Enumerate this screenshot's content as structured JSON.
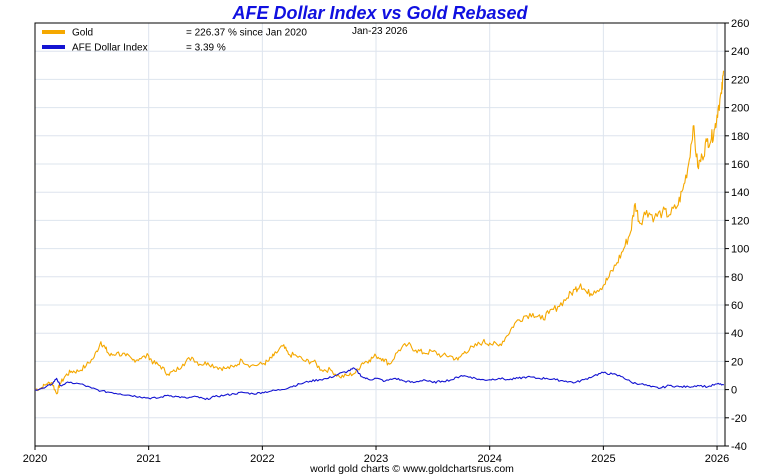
{
  "chart_data": {
    "type": "line",
    "title": "AFE Dollar Index vs Gold Rebased",
    "date_label": "Jan-23  2026",
    "source": "world gold charts © www.goldchartsrus.com",
    "xlabel": "",
    "ylabel": "",
    "xlim": [
      2020.0,
      2026.07
    ],
    "ylim": [
      -40,
      260
    ],
    "x_ticks": [
      {
        "value": 2020,
        "label": "2020"
      },
      {
        "value": 2021,
        "label": "2021"
      },
      {
        "value": 2022,
        "label": "2022"
      },
      {
        "value": 2023,
        "label": "2023"
      },
      {
        "value": 2024,
        "label": "2024"
      },
      {
        "value": 2025,
        "label": "2025"
      },
      {
        "value": 2026,
        "label": "2026"
      }
    ],
    "y_ticks": [
      {
        "value": 260,
        "label": "260"
      },
      {
        "value": 240,
        "label": "240"
      },
      {
        "value": 220,
        "label": "220"
      },
      {
        "value": 200,
        "label": "200"
      },
      {
        "value": 180,
        "label": "180"
      },
      {
        "value": 160,
        "label": "160"
      },
      {
        "value": 140,
        "label": "140"
      },
      {
        "value": 120,
        "label": "120"
      },
      {
        "value": 100,
        "label": "100"
      },
      {
        "value": 80,
        "label": "80"
      },
      {
        "value": 60,
        "label": "60"
      },
      {
        "value": 40,
        "label": "40"
      },
      {
        "value": 20,
        "label": "20"
      },
      {
        "value": 0,
        "label": "0"
      },
      {
        "value": -20,
        "label": "-20"
      },
      {
        "value": -40,
        "label": "-40"
      }
    ],
    "legend": {
      "placement": "top-left",
      "entries": [
        {
          "name": "Gold",
          "value_text": "= 226.37 % since Jan 2020",
          "color": "#f5a800"
        },
        {
          "name": "AFE Dollar Index",
          "value_text": "= 3.39 %",
          "color": "#1414d2"
        }
      ]
    },
    "series": [
      {
        "name": "Gold",
        "color": "#f5a800",
        "points": [
          [
            2020.0,
            0
          ],
          [
            2020.05,
            1
          ],
          [
            2020.1,
            4
          ],
          [
            2020.15,
            5
          ],
          [
            2020.19,
            -3
          ],
          [
            2020.22,
            4
          ],
          [
            2020.27,
            10
          ],
          [
            2020.32,
            13
          ],
          [
            2020.38,
            13
          ],
          [
            2020.45,
            17
          ],
          [
            2020.52,
            23
          ],
          [
            2020.58,
            34
          ],
          [
            2020.62,
            29
          ],
          [
            2020.66,
            24
          ],
          [
            2020.72,
            26
          ],
          [
            2020.8,
            24
          ],
          [
            2020.86,
            21
          ],
          [
            2020.92,
            22
          ],
          [
            2021.0,
            24
          ],
          [
            2021.04,
            19
          ],
          [
            2021.1,
            17
          ],
          [
            2021.17,
            11
          ],
          [
            2021.23,
            13
          ],
          [
            2021.3,
            18
          ],
          [
            2021.38,
            23
          ],
          [
            2021.45,
            18
          ],
          [
            2021.52,
            19
          ],
          [
            2021.6,
            16
          ],
          [
            2021.67,
            15
          ],
          [
            2021.75,
            16
          ],
          [
            2021.82,
            21
          ],
          [
            2021.9,
            17
          ],
          [
            2022.0,
            18
          ],
          [
            2022.05,
            20
          ],
          [
            2022.1,
            24
          ],
          [
            2022.18,
            31
          ],
          [
            2022.23,
            25
          ],
          [
            2022.3,
            24
          ],
          [
            2022.38,
            20
          ],
          [
            2022.45,
            20
          ],
          [
            2022.52,
            14
          ],
          [
            2022.6,
            14
          ],
          [
            2022.68,
            9
          ],
          [
            2022.75,
            10
          ],
          [
            2022.82,
            12
          ],
          [
            2022.88,
            19
          ],
          [
            2022.94,
            21
          ],
          [
            2023.0,
            24
          ],
          [
            2023.06,
            22
          ],
          [
            2023.12,
            18
          ],
          [
            2023.2,
            28
          ],
          [
            2023.28,
            32
          ],
          [
            2023.35,
            28
          ],
          [
            2023.42,
            26
          ],
          [
            2023.5,
            27
          ],
          [
            2023.58,
            24
          ],
          [
            2023.65,
            24
          ],
          [
            2023.72,
            21
          ],
          [
            2023.78,
            27
          ],
          [
            2023.86,
            30
          ],
          [
            2023.94,
            34
          ],
          [
            2024.0,
            33
          ],
          [
            2024.08,
            31
          ],
          [
            2024.15,
            38
          ],
          [
            2024.22,
            47
          ],
          [
            2024.3,
            52
          ],
          [
            2024.38,
            54
          ],
          [
            2024.45,
            50
          ],
          [
            2024.52,
            54
          ],
          [
            2024.6,
            59
          ],
          [
            2024.68,
            65
          ],
          [
            2024.75,
            71
          ],
          [
            2024.8,
            75
          ],
          [
            2024.86,
            68
          ],
          [
            2024.92,
            70
          ],
          [
            2025.0,
            74
          ],
          [
            2025.05,
            80
          ],
          [
            2025.12,
            90
          ],
          [
            2025.18,
            100
          ],
          [
            2025.24,
            112
          ],
          [
            2025.28,
            132
          ],
          [
            2025.32,
            118
          ],
          [
            2025.38,
            127
          ],
          [
            2025.45,
            122
          ],
          [
            2025.52,
            126
          ],
          [
            2025.58,
            124
          ],
          [
            2025.65,
            130
          ],
          [
            2025.7,
            142
          ],
          [
            2025.75,
            160
          ],
          [
            2025.79,
            187
          ],
          [
            2025.83,
            158
          ],
          [
            2025.87,
            165
          ],
          [
            2025.91,
            176
          ],
          [
            2025.95,
            178
          ],
          [
            2025.98,
            185
          ],
          [
            2026.01,
            200
          ],
          [
            2026.04,
            210
          ],
          [
            2026.06,
            226
          ]
        ]
      },
      {
        "name": "AFE Dollar Index",
        "color": "#1414d2",
        "points": [
          [
            2020.0,
            0
          ],
          [
            2020.08,
            1
          ],
          [
            2020.15,
            4
          ],
          [
            2020.19,
            8
          ],
          [
            2020.22,
            3
          ],
          [
            2020.3,
            5
          ],
          [
            2020.4,
            4
          ],
          [
            2020.5,
            1
          ],
          [
            2020.58,
            -1
          ],
          [
            2020.67,
            -2
          ],
          [
            2020.75,
            -3
          ],
          [
            2020.83,
            -4
          ],
          [
            2020.92,
            -5
          ],
          [
            2021.0,
            -6
          ],
          [
            2021.08,
            -6
          ],
          [
            2021.17,
            -4
          ],
          [
            2021.25,
            -5
          ],
          [
            2021.33,
            -6
          ],
          [
            2021.42,
            -5
          ],
          [
            2021.5,
            -7
          ],
          [
            2021.58,
            -5
          ],
          [
            2021.67,
            -4
          ],
          [
            2021.75,
            -3
          ],
          [
            2021.83,
            -2
          ],
          [
            2021.92,
            -3
          ],
          [
            2022.0,
            -2
          ],
          [
            2022.08,
            -1
          ],
          [
            2022.17,
            0
          ],
          [
            2022.25,
            2
          ],
          [
            2022.33,
            4
          ],
          [
            2022.42,
            6
          ],
          [
            2022.5,
            7
          ],
          [
            2022.58,
            8
          ],
          [
            2022.67,
            11
          ],
          [
            2022.75,
            13
          ],
          [
            2022.81,
            15
          ],
          [
            2022.88,
            9
          ],
          [
            2022.94,
            7
          ],
          [
            2023.0,
            8
          ],
          [
            2023.08,
            6
          ],
          [
            2023.17,
            8
          ],
          [
            2023.25,
            6
          ],
          [
            2023.33,
            5
          ],
          [
            2023.42,
            7
          ],
          [
            2023.5,
            5
          ],
          [
            2023.58,
            6
          ],
          [
            2023.67,
            7
          ],
          [
            2023.75,
            10
          ],
          [
            2023.83,
            9
          ],
          [
            2023.92,
            7
          ],
          [
            2024.0,
            7
          ],
          [
            2024.08,
            8
          ],
          [
            2024.17,
            7
          ],
          [
            2024.25,
            8
          ],
          [
            2024.33,
            9
          ],
          [
            2024.42,
            8
          ],
          [
            2024.5,
            8
          ],
          [
            2024.58,
            7
          ],
          [
            2024.67,
            6
          ],
          [
            2024.75,
            5
          ],
          [
            2024.83,
            7
          ],
          [
            2024.92,
            10
          ],
          [
            2025.0,
            12
          ],
          [
            2025.08,
            11
          ],
          [
            2025.17,
            9
          ],
          [
            2025.25,
            5
          ],
          [
            2025.33,
            4
          ],
          [
            2025.42,
            2
          ],
          [
            2025.5,
            1
          ],
          [
            2025.58,
            3
          ],
          [
            2025.67,
            2
          ],
          [
            2025.75,
            2
          ],
          [
            2025.83,
            3
          ],
          [
            2025.92,
            2
          ],
          [
            2026.0,
            4
          ],
          [
            2026.06,
            3.4
          ]
        ]
      }
    ]
  }
}
